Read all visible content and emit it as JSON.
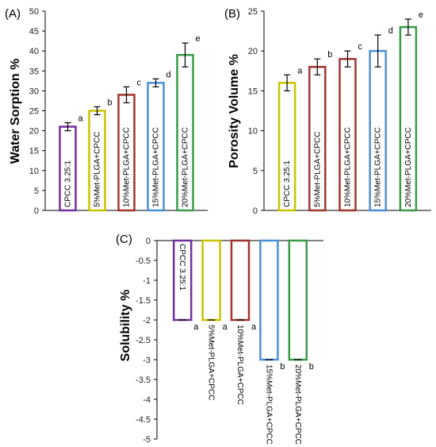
{
  "colors": {
    "purple": "#7030A0",
    "yellow": "#C9C400",
    "darkred": "#A0362E",
    "blue": "#4A90D9",
    "green": "#3A9A4A"
  },
  "chart_data": [
    {
      "panel": "(A)",
      "type": "bar",
      "ylabel": "Water Sorption %",
      "ylim": [
        0,
        50
      ],
      "yticks": [
        "0",
        "5",
        "10",
        "15",
        "20",
        "25",
        "30",
        "35",
        "40",
        "45",
        "50"
      ],
      "categories": [
        "CPCC 3.25:1",
        "5%Met-PLGA+CPCC",
        "10%Met-PLGA+CPCC",
        "15%Met-PLGA+CPCC",
        "20%Met-PLGA+CPCC"
      ],
      "values": [
        21,
        25,
        29,
        32,
        39
      ],
      "errors": [
        1,
        1,
        2,
        1,
        3
      ],
      "sig": [
        "a",
        "b",
        "c",
        "d",
        "e"
      ],
      "bar_colors": [
        "purple",
        "yellow",
        "darkred",
        "blue",
        "green"
      ]
    },
    {
      "panel": "(B)",
      "type": "bar",
      "ylabel": "Porosity Volume %",
      "ylim": [
        0,
        25
      ],
      "yticks": [
        "0",
        "5",
        "10",
        "15",
        "20",
        "25"
      ],
      "categories": [
        "CPCC 3.25:1",
        "5%Met-PLGA+CPCC",
        "10%Met-PLGA+CPCC",
        "15%Met-PLGA+CPCC",
        "20%Met-PLGA+CPCC"
      ],
      "values": [
        16,
        18,
        19,
        20,
        23
      ],
      "errors": [
        1,
        1,
        1,
        2,
        1
      ],
      "sig": [
        "a",
        "b",
        "c",
        "d",
        "e"
      ],
      "bar_colors": [
        "yellow",
        "darkred",
        "darkred",
        "blue",
        "green"
      ]
    },
    {
      "panel": "(C)",
      "type": "bar",
      "ylabel": "Solubility %",
      "ylim": [
        -5,
        0
      ],
      "yticks": [
        "0",
        "-0.5",
        "-1",
        "-1.5",
        "-2",
        "-2.5",
        "-3",
        "-3.5",
        "-4",
        "-4.5",
        "-5"
      ],
      "categories": [
        "CPCC 3.25:1",
        "5%Met-PLGA+CPCC",
        "10%Met-PLGA+CPCC",
        "15%Met-PLGA+CPCC",
        "20%Met-PLGA+CPCC"
      ],
      "values": [
        -2,
        -2,
        -2,
        -3,
        -3
      ],
      "errors": [
        0,
        0,
        0,
        0,
        0
      ],
      "sig": [
        "a",
        "a",
        "a",
        "b",
        "b"
      ],
      "bar_colors": [
        "purple",
        "yellow",
        "darkred",
        "blue",
        "green"
      ]
    }
  ]
}
